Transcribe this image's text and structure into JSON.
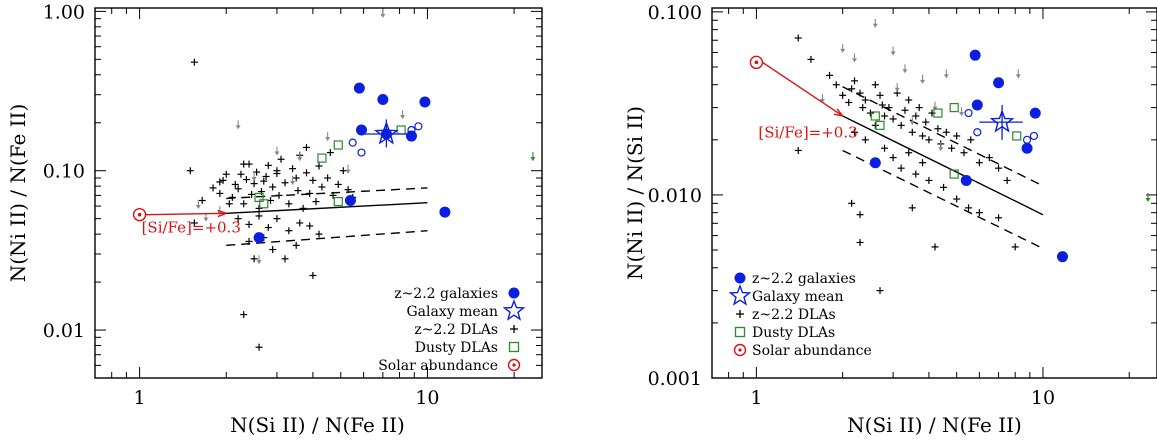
{
  "colors": {
    "galaxy": "#0a1fe0",
    "dla": "#000000",
    "dusty": "#2a8a2a",
    "solar": "#e01010",
    "limit": "#888888",
    "mean": "#0a1fe0"
  },
  "chart_data": [
    {
      "type": "scatter",
      "xlabel": "N(Si II) / N(Fe II)",
      "ylabel": "N(Ni II) / N(Fe II)",
      "xlim": [
        0.7,
        25
      ],
      "ylim": [
        0.005,
        1.05
      ],
      "xscale": "log",
      "yscale": "log",
      "xticks": [
        {
          "v": 1,
          "label": "1"
        },
        {
          "v": 10,
          "label": "10"
        }
      ],
      "yticks": [
        {
          "v": 0.01,
          "label": "0.01"
        },
        {
          "v": 0.1,
          "label": "0.10"
        },
        {
          "v": 1.0,
          "label": "1.00"
        }
      ],
      "annotation": "[Si/Fe]=+0.3",
      "legend": {
        "placement": "bottom-right",
        "entries": [
          {
            "label": "z~2.2 galaxies",
            "marker": "dot"
          },
          {
            "label": "Galaxy mean",
            "marker": "star"
          },
          {
            "label": "z~2.2 DLAs",
            "marker": "plus"
          },
          {
            "label": "Dusty DLAs",
            "marker": "square"
          },
          {
            "label": "Solar abundance",
            "marker": "sun"
          }
        ]
      },
      "solar": [
        1.0,
        0.053
      ],
      "arrow_to": [
        2.0,
        0.054
      ],
      "fit_line": [
        [
          2.0,
          0.054
        ],
        [
          10.0,
          0.063
        ]
      ],
      "band_upper": [
        [
          2.0,
          0.067
        ],
        [
          10.0,
          0.078
        ]
      ],
      "band_lower": [
        [
          2.0,
          0.034
        ],
        [
          10.0,
          0.042
        ]
      ],
      "galaxy_mean": {
        "x": 7.2,
        "y": 0.17,
        "xerr": [
          6.0,
          8.5
        ],
        "yerr": [
          0.14,
          0.21
        ]
      },
      "galaxies": [
        [
          5.8,
          0.33
        ],
        [
          7.0,
          0.28
        ],
        [
          9.8,
          0.27
        ],
        [
          5.9,
          0.18
        ],
        [
          7.2,
          0.17
        ],
        [
          8.8,
          0.165
        ],
        [
          5.4,
          0.065
        ],
        [
          11.5,
          0.055
        ],
        [
          2.6,
          0.038
        ]
      ],
      "galaxy_limits": [
        [
          5.5,
          0.15
        ],
        [
          5.9,
          0.13
        ],
        [
          8.8,
          0.18
        ],
        [
          9.3,
          0.19
        ]
      ],
      "dusty_dlas": [
        [
          4.3,
          0.12
        ],
        [
          4.9,
          0.145
        ],
        [
          8.1,
          0.18
        ],
        [
          2.6,
          0.068
        ],
        [
          2.7,
          0.062
        ],
        [
          4.9,
          0.064
        ]
      ],
      "dusty_limits": [
        [
          25.0,
          0.12
        ]
      ],
      "dla_limits": [
        [
          2.2,
          0.19
        ],
        [
          3.0,
          0.13
        ],
        [
          3.6,
          0.12
        ],
        [
          2.5,
          0.09
        ],
        [
          3.4,
          0.085
        ],
        [
          4.5,
          0.16
        ],
        [
          5.3,
          0.1
        ],
        [
          8.2,
          0.22
        ],
        [
          7.0,
          0.95
        ],
        [
          1.9,
          0.055
        ],
        [
          1.7,
          0.05
        ],
        [
          2.6,
          0.027
        ],
        [
          1.6,
          0.06
        ]
      ],
      "dlas": [
        [
          1.55,
          0.48
        ],
        [
          1.5,
          0.1
        ],
        [
          1.55,
          0.047
        ],
        [
          1.65,
          0.065
        ],
        [
          1.8,
          0.078
        ],
        [
          1.9,
          0.072
        ],
        [
          1.95,
          0.087
        ],
        [
          2.0,
          0.095
        ],
        [
          2.1,
          0.068
        ],
        [
          2.15,
          0.082
        ],
        [
          2.2,
          0.077
        ],
        [
          2.25,
          0.095
        ],
        [
          2.3,
          0.062
        ],
        [
          2.35,
          0.088
        ],
        [
          2.4,
          0.11
        ],
        [
          2.45,
          0.071
        ],
        [
          2.5,
          0.083
        ],
        [
          2.55,
          0.098
        ],
        [
          2.6,
          0.058
        ],
        [
          2.65,
          0.074
        ],
        [
          2.7,
          0.086
        ],
        [
          2.75,
          0.092
        ],
        [
          2.8,
          0.108
        ],
        [
          2.85,
          0.065
        ],
        [
          2.9,
          0.079
        ],
        [
          3.0,
          0.096
        ],
        [
          3.05,
          0.07
        ],
        [
          3.1,
          0.118
        ],
        [
          3.2,
          0.084
        ],
        [
          3.3,
          0.062
        ],
        [
          3.4,
          0.103
        ],
        [
          3.5,
          0.09
        ],
        [
          3.55,
          0.075
        ],
        [
          3.6,
          0.125
        ],
        [
          3.7,
          0.058
        ],
        [
          3.8,
          0.097
        ],
        [
          3.9,
          0.072
        ],
        [
          4.0,
          0.087
        ],
        [
          4.1,
          0.064
        ],
        [
          4.2,
          0.107
        ],
        [
          4.3,
          0.079
        ],
        [
          4.5,
          0.09
        ],
        [
          4.7,
          0.07
        ],
        [
          4.9,
          0.082
        ],
        [
          5.1,
          0.1
        ],
        [
          5.3,
          0.076
        ],
        [
          5.5,
          0.068
        ],
        [
          2.2,
          0.05
        ],
        [
          2.4,
          0.046
        ],
        [
          2.6,
          0.052
        ],
        [
          2.8,
          0.044
        ],
        [
          3.0,
          0.05
        ],
        [
          3.3,
          0.042
        ],
        [
          3.6,
          0.047
        ],
        [
          3.9,
          0.045
        ],
        [
          4.2,
          0.04
        ],
        [
          2.4,
          0.036
        ],
        [
          2.7,
          0.038
        ],
        [
          2.9,
          0.032
        ],
        [
          3.2,
          0.028
        ],
        [
          3.5,
          0.034
        ],
        [
          4.0,
          0.022
        ],
        [
          2.5,
          0.028
        ],
        [
          2.3,
          0.0125
        ],
        [
          2.6,
          0.0078
        ],
        [
          3.0,
          0.1
        ],
        [
          2.3,
          0.11
        ],
        [
          3.8,
          0.14
        ],
        [
          4.6,
          0.13
        ],
        [
          1.9,
          0.085
        ],
        [
          2.05,
          0.062
        ]
      ]
    },
    {
      "type": "scatter",
      "xlabel": "N(Si II) / N(Fe II)",
      "ylabel": "N(Ni II) / N(Si II)",
      "xlim": [
        0.7,
        25
      ],
      "ylim": [
        0.001,
        0.105
      ],
      "xscale": "log",
      "yscale": "log",
      "xticks": [
        {
          "v": 1,
          "label": "1"
        },
        {
          "v": 10,
          "label": "10"
        }
      ],
      "yticks": [
        {
          "v": 0.001,
          "label": "0.001"
        },
        {
          "v": 0.01,
          "label": "0.010"
        },
        {
          "v": 0.1,
          "label": "0.100"
        }
      ],
      "annotation": "[Si/Fe]=+0.3",
      "legend": {
        "placement": "bottom-left",
        "entries": [
          {
            "label": "z~2.2 galaxies",
            "marker": "dot"
          },
          {
            "label": "Galaxy mean",
            "marker": "star"
          },
          {
            "label": "z~2.2 DLAs",
            "marker": "plus"
          },
          {
            "label": "Dusty DLAs",
            "marker": "square"
          },
          {
            "label": "Solar abundance",
            "marker": "sun"
          }
        ]
      },
      "solar": [
        1.0,
        0.053
      ],
      "arrow_to": [
        2.0,
        0.027
      ],
      "fit_line": [
        [
          2.0,
          0.027
        ],
        [
          10.0,
          0.0078
        ]
      ],
      "band_upper": [
        [
          2.0,
          0.039
        ],
        [
          10.0,
          0.0112
        ]
      ],
      "band_lower": [
        [
          2.0,
          0.0175
        ],
        [
          10.0,
          0.0051
        ]
      ],
      "galaxy_mean": {
        "x": 7.2,
        "y": 0.025,
        "xerr": [
          6.0,
          8.5
        ],
        "yerr": [
          0.02,
          0.031
        ]
      },
      "galaxies": [
        [
          5.8,
          0.058
        ],
        [
          7.0,
          0.041
        ],
        [
          9.4,
          0.028
        ],
        [
          5.9,
          0.031
        ],
        [
          8.8,
          0.018
        ],
        [
          5.4,
          0.012
        ],
        [
          11.7,
          0.0046
        ],
        [
          2.6,
          0.015
        ]
      ],
      "galaxy_limits": [
        [
          5.5,
          0.028
        ],
        [
          5.9,
          0.022
        ],
        [
          8.8,
          0.02
        ],
        [
          9.3,
          0.021
        ]
      ],
      "dusty_dlas": [
        [
          4.3,
          0.028
        ],
        [
          4.9,
          0.03
        ],
        [
          8.1,
          0.021
        ],
        [
          2.6,
          0.027
        ],
        [
          2.7,
          0.024
        ],
        [
          4.9,
          0.013
        ]
      ],
      "dusty_limits": [
        [
          25.0,
          0.0095
        ]
      ],
      "dla_limits": [
        [
          2.6,
          0.085
        ],
        [
          3.0,
          0.06
        ],
        [
          3.3,
          0.048
        ],
        [
          3.8,
          0.042
        ],
        [
          4.6,
          0.045
        ],
        [
          3.1,
          0.038
        ],
        [
          4.2,
          0.03
        ],
        [
          2.0,
          0.062
        ],
        [
          2.2,
          0.055
        ],
        [
          1.7,
          0.033
        ],
        [
          8.2,
          0.045
        ],
        [
          3.5,
          0.025
        ],
        [
          4.4,
          0.018
        ],
        [
          5.2,
          0.028
        ]
      ],
      "dlas": [
        [
          1.4,
          0.072
        ],
        [
          1.55,
          0.055
        ],
        [
          1.8,
          0.045
        ],
        [
          1.9,
          0.04
        ],
        [
          2.0,
          0.035
        ],
        [
          2.1,
          0.032
        ],
        [
          2.15,
          0.038
        ],
        [
          2.2,
          0.042
        ],
        [
          2.3,
          0.036
        ],
        [
          2.35,
          0.03
        ],
        [
          2.4,
          0.033
        ],
        [
          2.5,
          0.028
        ],
        [
          2.6,
          0.04
        ],
        [
          2.7,
          0.035
        ],
        [
          2.75,
          0.031
        ],
        [
          2.8,
          0.027
        ],
        [
          2.9,
          0.03
        ],
        [
          3.0,
          0.026
        ],
        [
          3.1,
          0.036
        ],
        [
          3.2,
          0.024
        ],
        [
          3.3,
          0.029
        ],
        [
          3.4,
          0.033
        ],
        [
          3.5,
          0.022
        ],
        [
          3.6,
          0.027
        ],
        [
          3.7,
          0.03
        ],
        [
          3.8,
          0.021
        ],
        [
          3.9,
          0.025
        ],
        [
          4.0,
          0.02
        ],
        [
          4.1,
          0.028
        ],
        [
          4.3,
          0.023
        ],
        [
          4.4,
          0.019
        ],
        [
          4.6,
          0.022
        ],
        [
          4.8,
          0.018
        ],
        [
          5.0,
          0.021
        ],
        [
          5.3,
          0.017
        ],
        [
          5.6,
          0.02
        ],
        [
          6.0,
          0.015
        ],
        [
          6.5,
          0.016
        ],
        [
          7.0,
          0.014
        ],
        [
          7.5,
          0.012
        ],
        [
          2.2,
          0.022
        ],
        [
          2.4,
          0.02
        ],
        [
          2.6,
          0.024
        ],
        [
          2.8,
          0.018
        ],
        [
          3.0,
          0.016
        ],
        [
          3.2,
          0.014
        ],
        [
          3.4,
          0.017
        ],
        [
          3.6,
          0.013
        ],
        [
          3.8,
          0.015
        ],
        [
          4.0,
          0.012
        ],
        [
          4.5,
          0.011
        ],
        [
          5.0,
          0.0095
        ],
        [
          5.5,
          0.0085
        ],
        [
          6.0,
          0.008
        ],
        [
          7.0,
          0.0075
        ],
        [
          8.0,
          0.0052
        ],
        [
          1.4,
          0.0175
        ],
        [
          2.15,
          0.009
        ],
        [
          2.3,
          0.0055
        ],
        [
          2.7,
          0.003
        ],
        [
          3.5,
          0.0085
        ],
        [
          4.2,
          0.0052
        ],
        [
          2.3,
          0.0078
        ]
      ]
    }
  ]
}
